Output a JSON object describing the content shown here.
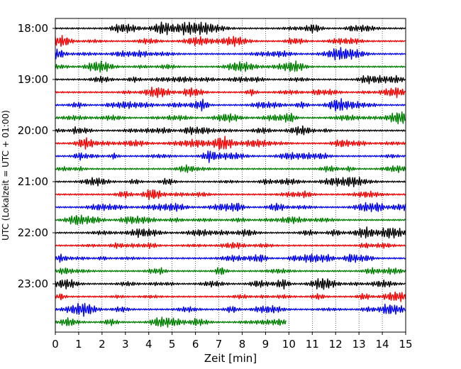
{
  "chart_data": {
    "type": "line",
    "xlabel": "Zeit  [min]",
    "ylabel": "UTC (Lokalzeit = UTC + 01:00)",
    "xlim": [
      0,
      15
    ],
    "x_ticks": [
      "0",
      "1",
      "2",
      "3",
      "4",
      "5",
      "6",
      "7",
      "8",
      "9",
      "10",
      "11",
      "12",
      "13",
      "14",
      "15"
    ],
    "y_ticks": [
      "18:00",
      "19:00",
      "20:00",
      "21:00",
      "22:00",
      "23:00"
    ],
    "grid": "vertical dotted lines at each minute",
    "trace_interval_min": 15,
    "last_trace_end_min": 9.9,
    "series": [
      {
        "start": "18:00",
        "color": "#000000"
      },
      {
        "start": "18:15",
        "color": "#ff0000"
      },
      {
        "start": "18:30",
        "color": "#0000ff"
      },
      {
        "start": "18:45",
        "color": "#008000"
      },
      {
        "start": "19:00",
        "color": "#000000"
      },
      {
        "start": "19:15",
        "color": "#ff0000"
      },
      {
        "start": "19:30",
        "color": "#0000ff"
      },
      {
        "start": "19:45",
        "color": "#008000"
      },
      {
        "start": "20:00",
        "color": "#000000"
      },
      {
        "start": "20:15",
        "color": "#ff0000"
      },
      {
        "start": "20:30",
        "color": "#0000ff"
      },
      {
        "start": "20:45",
        "color": "#008000"
      },
      {
        "start": "21:00",
        "color": "#000000"
      },
      {
        "start": "21:15",
        "color": "#ff0000"
      },
      {
        "start": "21:30",
        "color": "#0000ff"
      },
      {
        "start": "21:45",
        "color": "#008000"
      },
      {
        "start": "22:00",
        "color": "#000000"
      },
      {
        "start": "22:15",
        "color": "#ff0000"
      },
      {
        "start": "22:30",
        "color": "#0000ff"
      },
      {
        "start": "22:45",
        "color": "#008000"
      },
      {
        "start": "23:00",
        "color": "#000000"
      },
      {
        "start": "23:15",
        "color": "#ff0000"
      },
      {
        "start": "23:30",
        "color": "#0000ff"
      },
      {
        "start": "23:45",
        "color": "#008000"
      }
    ]
  }
}
